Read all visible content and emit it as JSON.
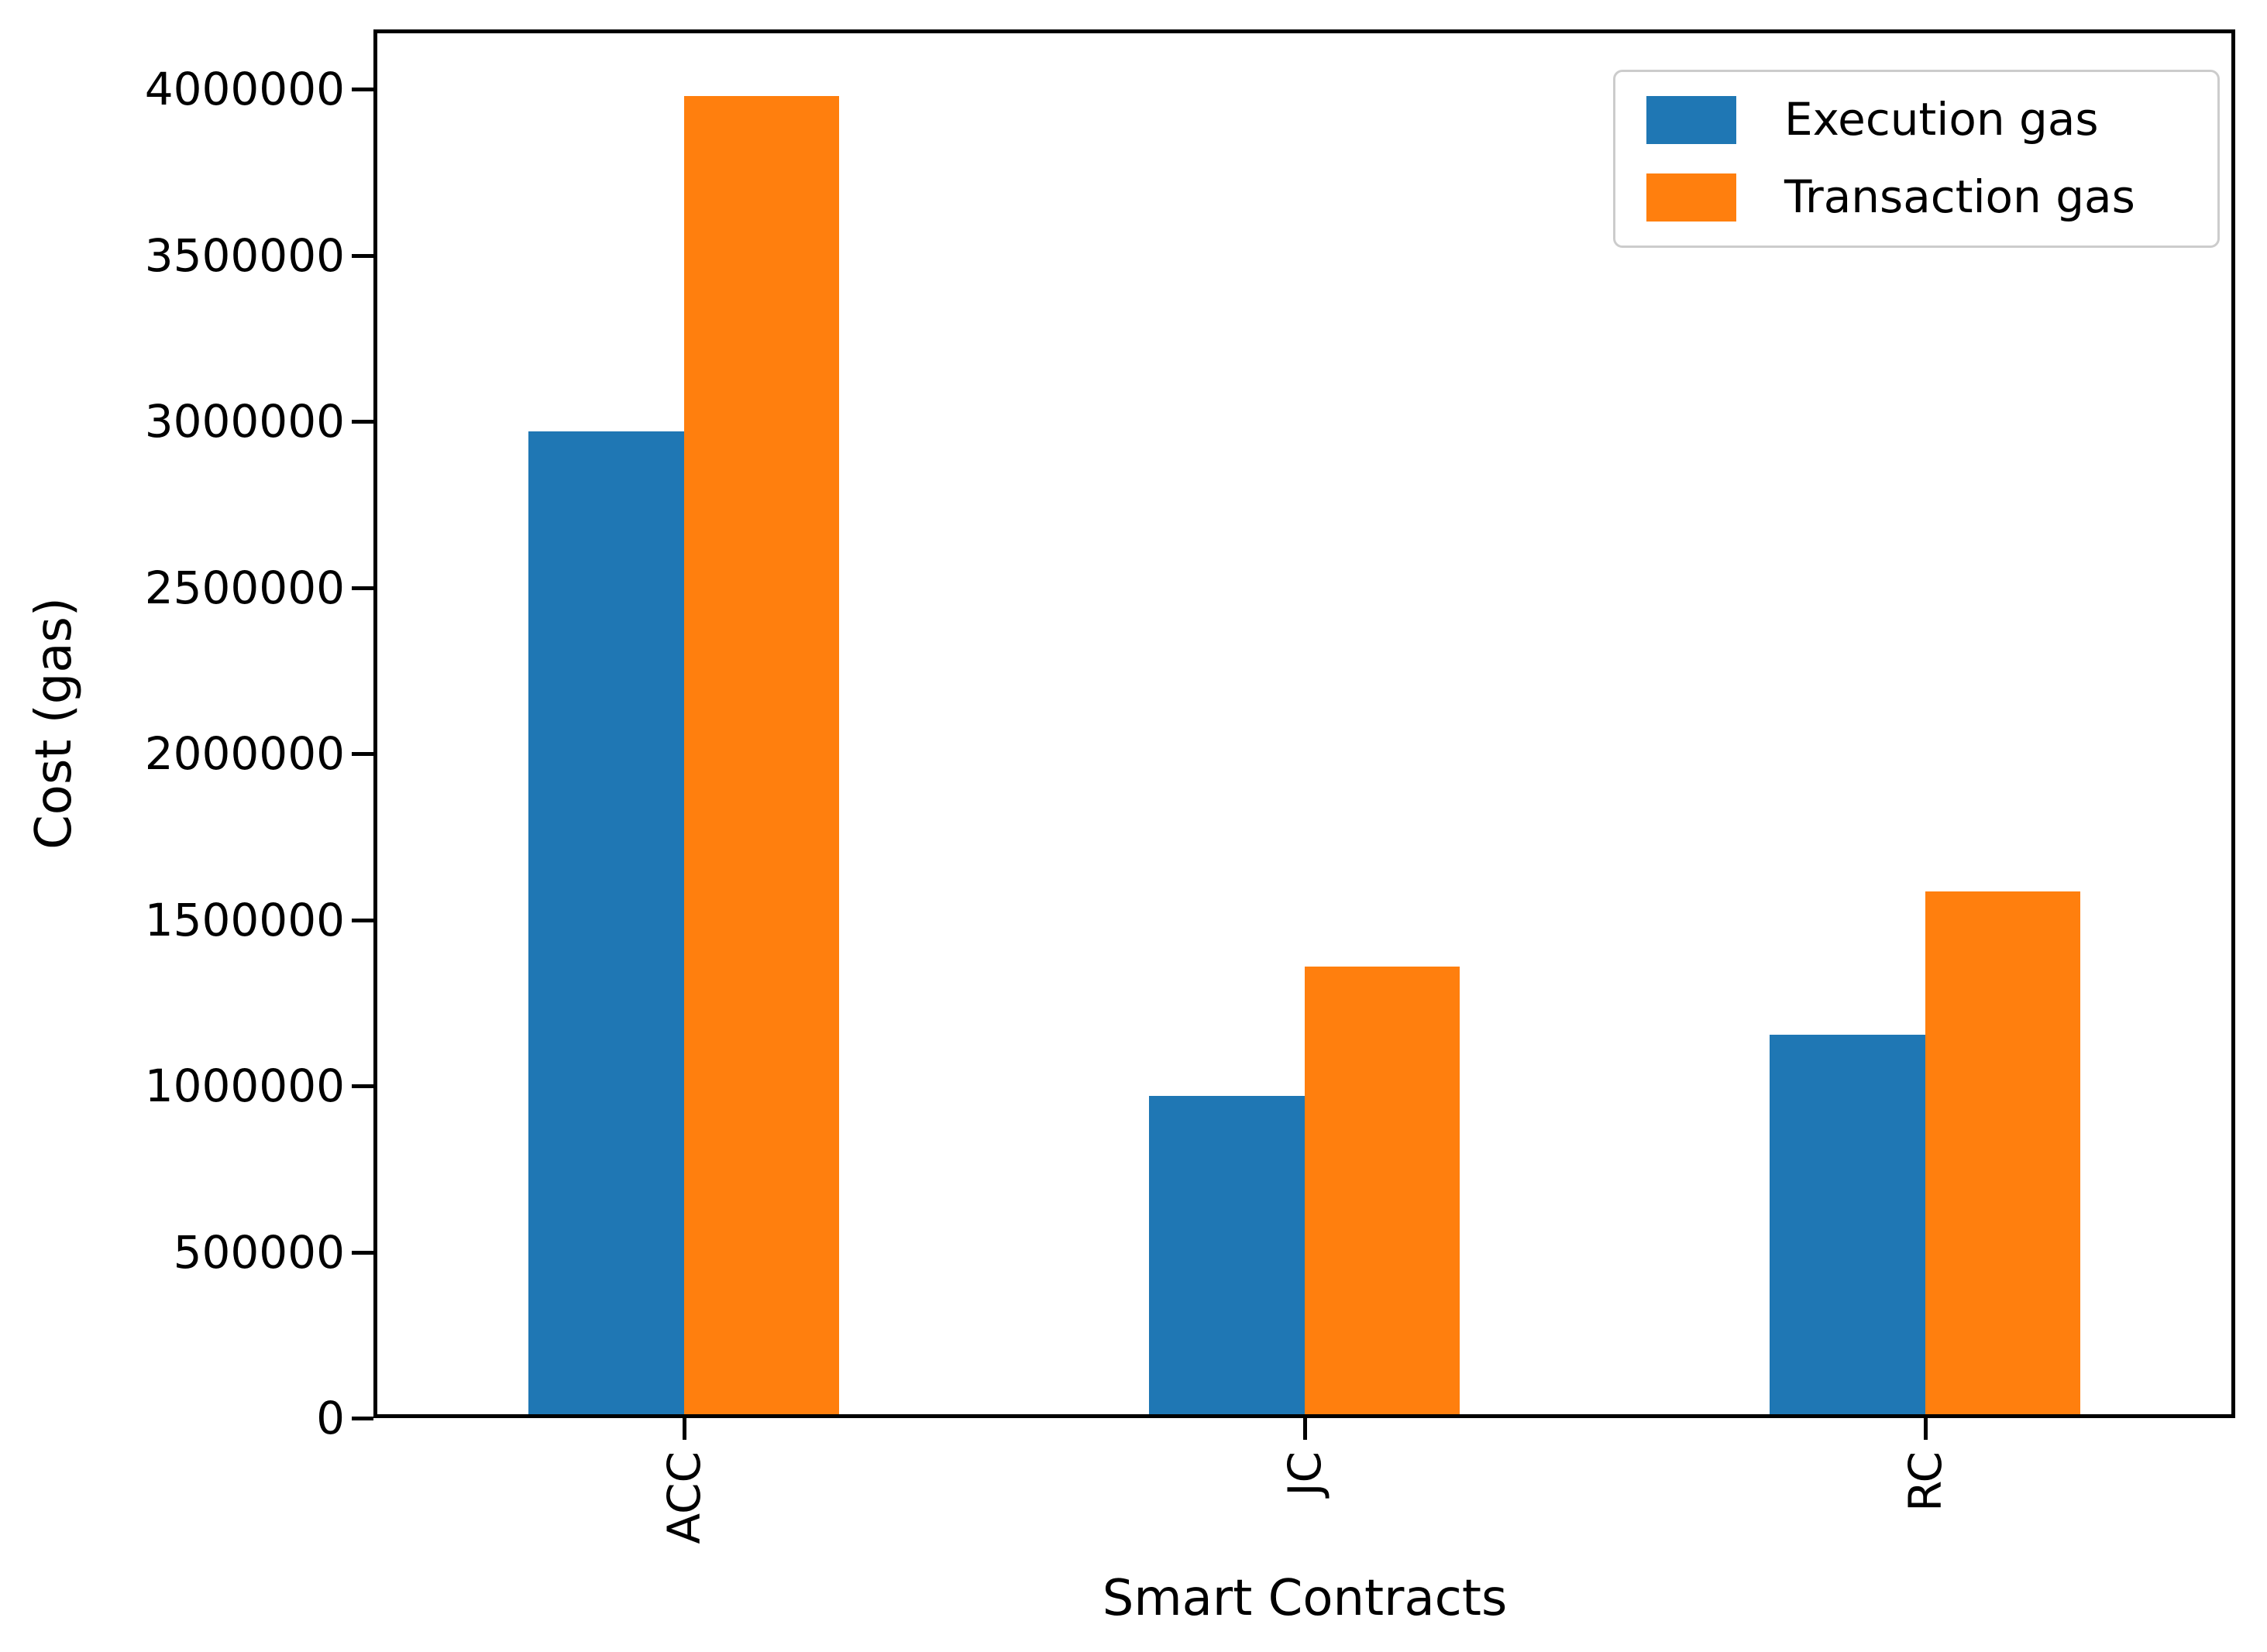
{
  "chart_data": {
    "type": "bar",
    "title": "",
    "xlabel": "Smart Contracts",
    "ylabel": "Cost (gas)",
    "categories": [
      "ACC",
      "JC",
      "RC"
    ],
    "series": [
      {
        "name": "Execution gas",
        "color": "#1f77b4",
        "values": [
          2970000,
          970000,
          1155000
        ]
      },
      {
        "name": "Transaction gas",
        "color": "#ff7f0e",
        "values": [
          3980000,
          1360000,
          1585000
        ]
      }
    ],
    "yticks": [
      0,
      500000,
      1000000,
      1500000,
      2000000,
      2500000,
      3000000,
      3500000,
      4000000
    ],
    "ylim": [
      0,
      4180000
    ],
    "xlim_units": [
      -0.5,
      2.5
    ],
    "bar_width_units": 0.25,
    "grid": false,
    "legend_position": "upper right",
    "tick_label_rotation": 90,
    "axis_color": "#000000",
    "background_color": "#ffffff"
  }
}
